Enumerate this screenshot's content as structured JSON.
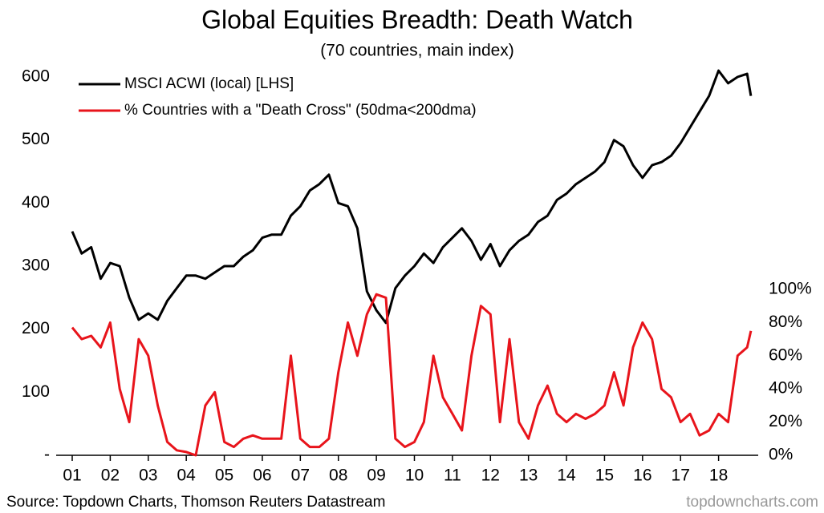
{
  "chart_data": {
    "type": "line",
    "title": "Global Equities Breadth: Death Watch",
    "subtitle": "(70 countries, main index)",
    "source": "Source: Topdown Charts, Thomson Reuters Datastream",
    "watermark": "topdowncharts.com",
    "x": [
      2001,
      2001.25,
      2001.5,
      2001.75,
      2002,
      2002.25,
      2002.5,
      2002.75,
      2003,
      2003.25,
      2003.5,
      2003.75,
      2004,
      2004.25,
      2004.5,
      2004.75,
      2005,
      2005.25,
      2005.5,
      2005.75,
      2006,
      2006.25,
      2006.5,
      2006.75,
      2007,
      2007.25,
      2007.5,
      2007.75,
      2008,
      2008.25,
      2008.5,
      2008.75,
      2009,
      2009.25,
      2009.5,
      2009.75,
      2010,
      2010.25,
      2010.5,
      2010.75,
      2011,
      2011.25,
      2011.5,
      2011.75,
      2012,
      2012.25,
      2012.5,
      2012.75,
      2013,
      2013.25,
      2013.5,
      2013.75,
      2014,
      2014.25,
      2014.5,
      2014.75,
      2015,
      2015.25,
      2015.5,
      2015.75,
      2016,
      2016.25,
      2016.5,
      2016.75,
      2017,
      2017.25,
      2017.5,
      2017.75,
      2018,
      2018.25,
      2018.5,
      2018.75,
      2018.85
    ],
    "xlim": [
      2001,
      2019
    ],
    "xticks": [
      {
        "value": 2001,
        "label": "01"
      },
      {
        "value": 2002,
        "label": "02"
      },
      {
        "value": 2003,
        "label": "03"
      },
      {
        "value": 2004,
        "label": "04"
      },
      {
        "value": 2005,
        "label": "05"
      },
      {
        "value": 2006,
        "label": "06"
      },
      {
        "value": 2007,
        "label": "07"
      },
      {
        "value": 2008,
        "label": "08"
      },
      {
        "value": 2009,
        "label": "09"
      },
      {
        "value": 2010,
        "label": "10"
      },
      {
        "value": 2011,
        "label": "11"
      },
      {
        "value": 2012,
        "label": "12"
      },
      {
        "value": 2013,
        "label": "13"
      },
      {
        "value": 2014,
        "label": "14"
      },
      {
        "value": 2015,
        "label": "15"
      },
      {
        "value": 2016,
        "label": "16"
      },
      {
        "value": 2017,
        "label": "17"
      },
      {
        "value": 2018,
        "label": "18"
      }
    ],
    "ylim": [
      0,
      600
    ],
    "yticks": [
      {
        "value": 0,
        "label": "-"
      },
      100,
      200,
      300,
      400,
      500,
      600
    ],
    "y2lim": [
      0,
      100
    ],
    "y2ticks": [
      {
        "value": 0,
        "label": "0%"
      },
      {
        "value": 20,
        "label": "20%"
      },
      {
        "value": 40,
        "label": "40%"
      },
      {
        "value": 60,
        "label": "60%"
      },
      {
        "value": 80,
        "label": "80%"
      },
      {
        "value": 100,
        "label": "100%"
      }
    ],
    "series": [
      {
        "name": "MSCI ACWI (local) [LHS]",
        "color": "#000000",
        "values": [
          355,
          320,
          330,
          280,
          305,
          300,
          250,
          215,
          225,
          215,
          245,
          265,
          285,
          285,
          280,
          290,
          300,
          300,
          315,
          325,
          345,
          350,
          350,
          380,
          395,
          420,
          430,
          445,
          400,
          395,
          360,
          260,
          230,
          210,
          265,
          285,
          300,
          320,
          305,
          330,
          345,
          360,
          340,
          310,
          335,
          300,
          325,
          340,
          350,
          370,
          380,
          405,
          415,
          430,
          440,
          450,
          465,
          500,
          490,
          460,
          440,
          460,
          465,
          475,
          495,
          520,
          545,
          570,
          610,
          590,
          600,
          605,
          570
        ]
      },
      {
        "name": "% Countries with a \"Death Cross\" (50dma<200dma)",
        "color": "#e8141b",
        "axis": "y2",
        "values": [
          77,
          70,
          72,
          65,
          80,
          40,
          20,
          70,
          60,
          30,
          8,
          3,
          2,
          0,
          30,
          38,
          8,
          5,
          10,
          12,
          10,
          10,
          10,
          60,
          10,
          5,
          5,
          10,
          50,
          80,
          60,
          85,
          97,
          95,
          10,
          5,
          8,
          20,
          60,
          35,
          25,
          15,
          60,
          90,
          85,
          20,
          70,
          20,
          10,
          30,
          42,
          25,
          20,
          25,
          22,
          25,
          30,
          50,
          30,
          65,
          80,
          70,
          40,
          35,
          20,
          25,
          12,
          15,
          25,
          20,
          60,
          65,
          75
        ]
      }
    ]
  }
}
